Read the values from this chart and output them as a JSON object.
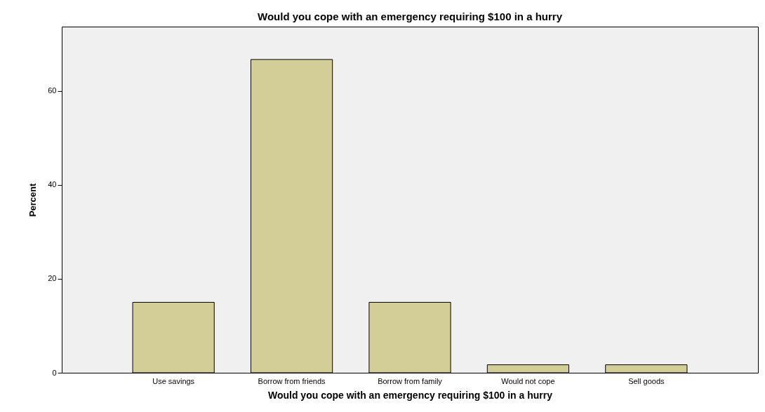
{
  "chart_data": {
    "type": "bar",
    "title": "Would you cope with an emergency requiring $100 in a hurry",
    "xlabel": "Would you cope with an emergency requiring $100 in a hurry",
    "ylabel": "Percent",
    "categories": [
      "Use savings",
      "Borrow from friends",
      "Borrow from family",
      "Would not cope",
      "Sell goods"
    ],
    "values": [
      15,
      66.7,
      15,
      1.7,
      1.7
    ],
    "color": "#d3ce97",
    "ylim": [
      0,
      73.7
    ],
    "yticks": [
      0,
      20,
      40,
      60
    ],
    "grid": false
  }
}
